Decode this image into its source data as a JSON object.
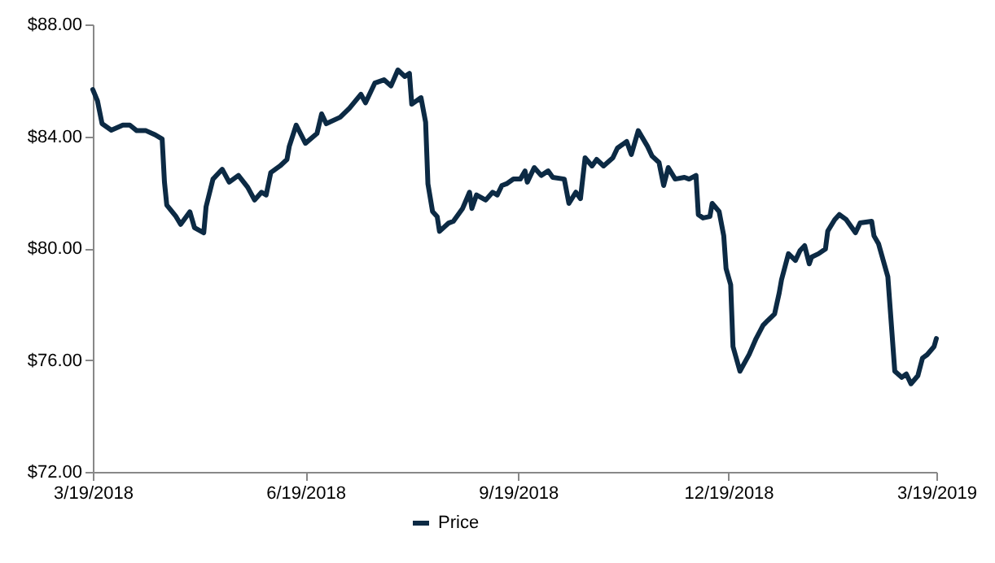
{
  "chart_data": {
    "type": "line",
    "x": [
      "2018-03-19",
      "2018-03-21",
      "2018-03-23",
      "2018-03-27",
      "2018-04-01",
      "2018-04-04",
      "2018-04-07",
      "2018-04-11",
      "2018-04-15",
      "2018-04-18",
      "2018-04-19",
      "2018-04-20",
      "2018-04-24",
      "2018-04-26",
      "2018-04-30",
      "2018-05-02",
      "2018-05-06",
      "2018-05-07",
      "2018-05-10",
      "2018-05-14",
      "2018-05-17",
      "2018-05-21",
      "2018-05-25",
      "2018-05-28",
      "2018-05-31",
      "2018-06-02",
      "2018-06-04",
      "2018-06-08",
      "2018-06-11",
      "2018-06-12",
      "2018-06-15",
      "2018-06-19",
      "2018-06-24",
      "2018-06-26",
      "2018-06-28",
      "2018-07-04",
      "2018-07-08",
      "2018-07-13",
      "2018-07-15",
      "2018-07-19",
      "2018-07-23",
      "2018-07-26",
      "2018-07-29",
      "2018-08-01",
      "2018-08-03",
      "2018-08-04",
      "2018-08-08",
      "2018-08-10",
      "2018-08-11",
      "2018-08-13",
      "2018-08-15",
      "2018-08-16",
      "2018-08-20",
      "2018-08-22",
      "2018-08-26",
      "2018-08-29",
      "2018-08-30",
      "2018-09-01",
      "2018-09-05",
      "2018-09-08",
      "2018-09-10",
      "2018-09-12",
      "2018-09-14",
      "2018-09-17",
      "2018-09-20",
      "2018-09-22",
      "2018-09-23",
      "2018-09-26",
      "2018-09-29",
      "2018-10-02",
      "2018-10-04",
      "2018-10-09",
      "2018-10-11",
      "2018-10-14",
      "2018-10-16",
      "2018-10-18",
      "2018-10-21",
      "2018-10-23",
      "2018-10-26",
      "2018-10-30",
      "2018-11-01",
      "2018-11-05",
      "2018-11-07",
      "2018-11-10",
      "2018-11-14",
      "2018-11-16",
      "2018-11-19",
      "2018-11-21",
      "2018-11-23",
      "2018-11-26",
      "2018-11-30",
      "2018-12-02",
      "2018-12-05",
      "2018-12-06",
      "2018-12-08",
      "2018-12-11",
      "2018-12-12",
      "2018-12-15",
      "2018-12-17",
      "2018-12-18",
      "2018-12-20",
      "2018-12-21",
      "2018-12-24",
      "2018-12-28",
      "2018-12-31",
      "2019-01-03",
      "2019-01-05",
      "2019-01-08",
      "2019-01-10",
      "2019-01-11",
      "2019-01-14",
      "2019-01-17",
      "2019-01-19",
      "2019-01-21",
      "2019-01-23",
      "2019-01-24",
      "2019-01-27",
      "2019-01-30",
      "2019-01-31",
      "2019-02-03",
      "2019-02-05",
      "2019-02-08",
      "2019-02-12",
      "2019-02-14",
      "2019-02-19",
      "2019-02-20",
      "2019-02-22",
      "2019-02-26",
      "2019-03-01",
      "2019-03-04",
      "2019-03-06",
      "2019-03-08",
      "2019-03-11",
      "2019-03-13",
      "2019-03-15",
      "2019-03-18",
      "2019-03-19"
    ],
    "series": [
      {
        "name": "Price",
        "color": "#0c2a44",
        "values": [
          85.67,
          85.27,
          84.45,
          84.22,
          84.4,
          84.4,
          84.2,
          84.2,
          84.05,
          83.9,
          82.36,
          81.54,
          81.13,
          80.85,
          81.3,
          80.73,
          80.55,
          81.48,
          82.47,
          82.82,
          82.36,
          82.6,
          82.18,
          81.72,
          82.0,
          81.9,
          82.7,
          82.94,
          83.17,
          83.64,
          84.4,
          83.75,
          84.1,
          84.8,
          84.45,
          84.68,
          85.0,
          85.5,
          85.2,
          85.9,
          86.02,
          85.8,
          86.37,
          86.14,
          86.25,
          85.15,
          85.38,
          84.5,
          82.3,
          81.31,
          81.13,
          80.6,
          80.9,
          80.96,
          81.42,
          82.0,
          81.42,
          81.9,
          81.72,
          82.0,
          81.9,
          82.24,
          82.3,
          82.47,
          82.47,
          82.76,
          82.36,
          82.88,
          82.6,
          82.76,
          82.53,
          82.47,
          81.6,
          82.0,
          81.77,
          83.23,
          82.94,
          83.17,
          82.94,
          83.23,
          83.58,
          83.81,
          83.35,
          84.2,
          83.64,
          83.29,
          83.06,
          82.24,
          82.88,
          82.47,
          82.53,
          82.47,
          82.6,
          81.2,
          81.08,
          81.13,
          81.6,
          81.31,
          80.44,
          79.27,
          78.69,
          76.48,
          75.6,
          76.2,
          76.77,
          77.24,
          77.41,
          77.65,
          78.4,
          78.87,
          79.8,
          79.56,
          79.91,
          80.09,
          79.44,
          79.68,
          79.8,
          79.97,
          80.61,
          81.02,
          81.2,
          81.02,
          80.55,
          80.9,
          80.96,
          80.44,
          80.15,
          78.98,
          75.6,
          75.38,
          75.5,
          75.15,
          75.44,
          76.07,
          76.19,
          76.48,
          76.77
        ]
      }
    ],
    "xlim": [
      "2018-03-19",
      "2019-03-19"
    ],
    "xticks": [
      {
        "value": "2018-03-19",
        "label": "3/19/2018"
      },
      {
        "value": "2018-06-19",
        "label": "6/19/2018"
      },
      {
        "value": "2018-09-19",
        "label": "9/19/2018"
      },
      {
        "value": "2018-12-19",
        "label": "12/19/2018"
      },
      {
        "value": "2019-03-19",
        "label": "3/19/2019"
      }
    ],
    "ylim": [
      72,
      88
    ],
    "yticks": [
      {
        "value": 72,
        "label": "$72.00"
      },
      {
        "value": 76,
        "label": "$76.00"
      },
      {
        "value": 80,
        "label": "$80.00"
      },
      {
        "value": 84,
        "label": "$84.00"
      },
      {
        "value": 88,
        "label": "$88.00"
      }
    ],
    "grid": false,
    "legend": "bottom",
    "marker": "none",
    "line_style": "solid"
  }
}
